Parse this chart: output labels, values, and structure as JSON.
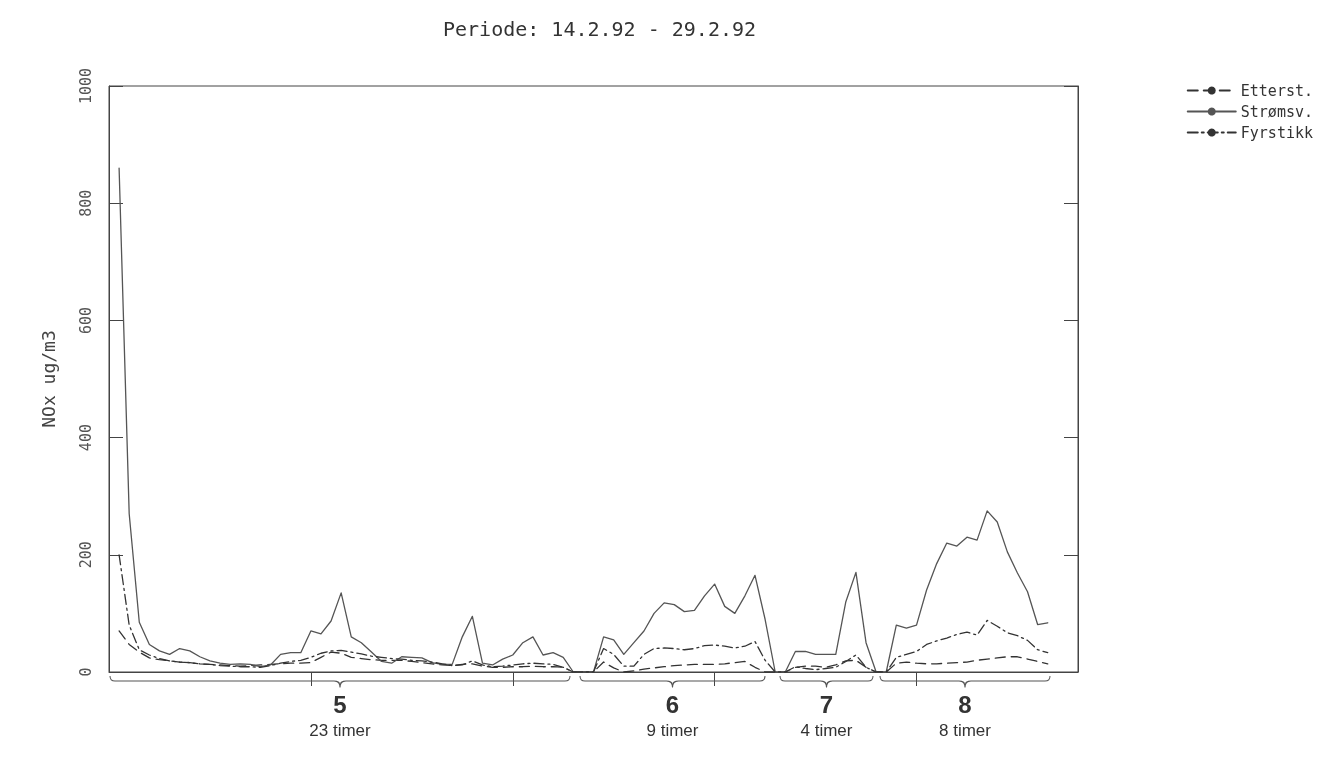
{
  "chart_data": {
    "type": "line",
    "title": "Periode: 14.2.92 - 29.2.92",
    "ylabel": "NOx ug/m3",
    "categories": [
      null,
      null,
      null,
      null,
      null,
      null,
      null,
      null,
      null,
      null,
      null,
      null,
      null,
      null,
      null,
      null,
      null,
      null,
      null,
      null,
      null,
      null,
      null,
      null,
      null,
      null,
      null,
      null,
      null,
      null,
      null,
      null,
      null,
      null,
      null,
      null,
      null,
      null,
      null,
      null,
      null,
      null,
      null,
      null,
      null,
      null,
      null,
      null,
      null,
      null,
      null,
      null,
      null,
      null,
      null,
      null,
      null,
      null,
      null,
      null,
      null,
      null,
      null,
      null,
      null,
      null,
      null,
      null,
      null,
      null,
      null,
      null,
      null,
      null,
      null,
      null,
      null,
      null,
      null,
      null,
      null,
      null,
      null,
      null,
      null,
      null,
      null,
      null,
      null,
      null,
      null,
      null,
      null,
      null,
      null,
      null,
      null
    ],
    "ylim": [
      0,
      1000
    ],
    "yticks": [
      0,
      200,
      400,
      600,
      800,
      1000
    ],
    "tick_labels": "y",
    "grid": false,
    "legend": "top right",
    "marker": "none",
    "annotations": [
      "5",
      "23 timer",
      "6",
      "9 timer",
      "7",
      "4 timer",
      "8",
      "8 timer"
    ],
    "series": [
      {
        "name": "Etterst.",
        "color": "#333333",
        "line_style": "dashed",
        "values": [
          null,
          70,
          47,
          34,
          24,
          21,
          19,
          17,
          16,
          14,
          13,
          12,
          11,
          10,
          11,
          12,
          13,
          14,
          15,
          15,
          16,
          25,
          34,
          32,
          25,
          23,
          21,
          20,
          20,
          20,
          18,
          16,
          14,
          12,
          11,
          13,
          14,
          10,
          8,
          8,
          9,
          9,
          10,
          9,
          9,
          8,
          0,
          0,
          0,
          17,
          7,
          0,
          2,
          5,
          7,
          9,
          11,
          12,
          13,
          13,
          13,
          14,
          16,
          18,
          8,
          0,
          0,
          0,
          8,
          10,
          10,
          8,
          12,
          19,
          20,
          8,
          0,
          0,
          15,
          17,
          15,
          14,
          14,
          15,
          16,
          17,
          20,
          22,
          24,
          26,
          26,
          22,
          18,
          14,
          null,
          null,
          null
        ]
      },
      {
        "name": "Strømsv.",
        "color": "#555555",
        "line_style": "solid",
        "values": [
          null,
          860,
          270,
          85,
          47,
          36,
          30,
          40,
          36,
          26,
          19,
          15,
          13,
          14,
          13,
          9,
          12,
          30,
          33,
          33,
          70,
          65,
          87,
          135,
          60,
          50,
          34,
          18,
          15,
          26,
          25,
          24,
          16,
          13,
          13,
          60,
          95,
          15,
          12,
          22,
          29,
          50,
          60,
          29,
          33,
          25,
          0,
          0,
          0,
          60,
          55,
          30,
          50,
          70,
          100,
          118,
          115,
          103,
          105,
          130,
          150,
          112,
          100,
          130,
          165,
          90,
          0,
          0,
          35,
          35,
          30,
          30,
          30,
          120,
          170,
          50,
          0,
          0,
          80,
          75,
          80,
          140,
          185,
          220,
          215,
          230,
          225,
          275,
          256,
          205,
          169,
          137,
          81,
          84,
          null,
          null,
          null
        ]
      },
      {
        "name": "Fyrstikk",
        "color": "#333333",
        "line_style": "dashdot",
        "values": [
          null,
          200,
          80,
          38,
          29,
          23,
          19,
          17,
          16,
          14,
          13,
          11,
          10,
          9,
          9,
          8,
          11,
          15,
          18,
          20,
          25,
          32,
          36,
          37,
          34,
          31,
          27,
          25,
          23,
          22,
          20,
          19,
          17,
          14,
          11,
          12,
          19,
          12,
          9,
          10,
          12,
          14,
          15,
          14,
          13,
          8,
          0,
          0,
          0,
          40,
          30,
          10,
          10,
          30,
          40,
          41,
          40,
          38,
          40,
          45,
          46,
          44,
          41,
          44,
          52,
          20,
          0,
          0,
          9,
          6,
          4,
          6,
          8,
          18,
          29,
          8,
          0,
          0,
          25,
          30,
          35,
          47,
          53,
          58,
          64,
          68,
          63,
          88,
          78,
          67,
          62,
          54,
          38,
          33,
          null,
          null,
          null
        ]
      }
    ]
  }
}
